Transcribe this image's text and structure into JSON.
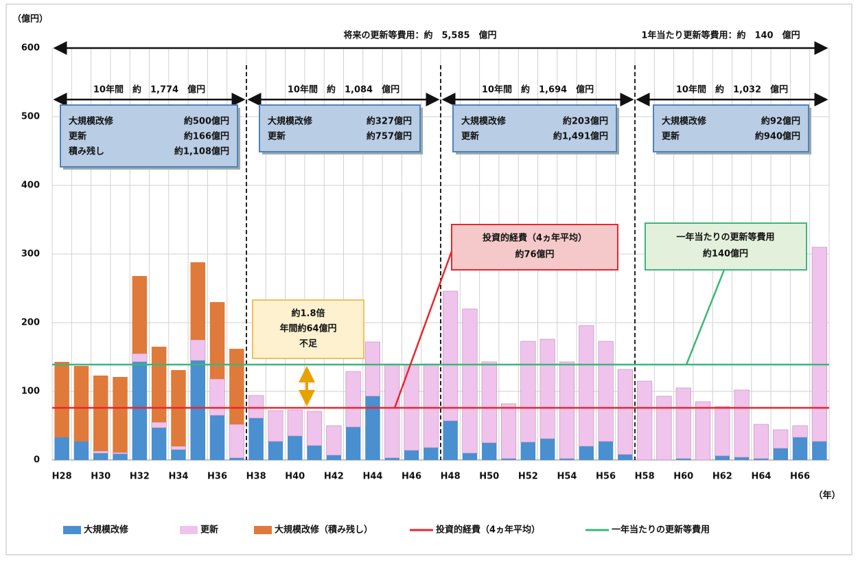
{
  "chart_data": {
    "type": "bar",
    "y_label": "（億円）",
    "x_label": "（年）",
    "categories": [
      "H28",
      null,
      "H30",
      null,
      "H32",
      null,
      "H34",
      null,
      "H36",
      null,
      "H38",
      null,
      "H40",
      null,
      "H42",
      null,
      "H44",
      null,
      "H46",
      null,
      "H48",
      null,
      "H50",
      null,
      "H52",
      null,
      "H54",
      null,
      "H56",
      null,
      "H58",
      null,
      "H60",
      null,
      "H62",
      null,
      "H64",
      null,
      "H66",
      null
    ],
    "series": [
      {
        "name": "大規模改修",
        "color": "#4a8fcf",
        "values": [
          33,
          27,
          10,
          9,
          143,
          47,
          15,
          145,
          65,
          3,
          61,
          27,
          35,
          21,
          7,
          48,
          93,
          3,
          14,
          18,
          57,
          10,
          25,
          2,
          26,
          31,
          2,
          20,
          27,
          8,
          0,
          0,
          2,
          0,
          6,
          4,
          2,
          17,
          33,
          27
        ]
      },
      {
        "name": "更新",
        "color": "#efc3ec",
        "values": [
          0,
          0,
          3,
          2,
          12,
          8,
          5,
          30,
          53,
          49,
          33,
          45,
          38,
          50,
          43,
          81,
          79,
          137,
          125,
          122,
          189,
          210,
          118,
          80,
          147,
          145,
          141,
          176,
          146,
          124,
          115,
          93,
          103,
          85,
          72,
          98,
          50,
          27,
          17,
          283
        ]
      },
      {
        "name": "大規模改修（積み残し）",
        "color": "#e07a3a",
        "values": [
          110,
          110,
          110,
          110,
          113,
          110,
          111,
          113,
          112,
          110,
          0,
          0,
          0,
          0,
          0,
          0,
          0,
          0,
          0,
          0,
          0,
          0,
          0,
          0,
          0,
          0,
          0,
          0,
          0,
          0,
          0,
          0,
          0,
          0,
          0,
          0,
          0,
          0,
          0,
          0
        ]
      }
    ],
    "lines": [
      {
        "name": "投資的経費（4ヵ年平均）",
        "color": "#e8262c",
        "value": 76
      },
      {
        "name": "一年当たりの更新等費用",
        "color": "#3db57a",
        "value": 139
      }
    ],
    "ylim": [
      0,
      600
    ],
    "yticks": [
      0,
      100,
      200,
      300,
      400,
      500,
      600
    ],
    "grid": true,
    "total_label": "将来の更新等費用：約　5,585　億円",
    "annual_label": "1年当たり更新等費用：約　140　億円",
    "decades": [
      {
        "label": "10年間　約　1,774　億円",
        "rows": [
          [
            "大規模改修",
            "約500億円"
          ],
          [
            "更新",
            "約166億円"
          ],
          [
            "積み残し",
            "約1,108億円"
          ]
        ]
      },
      {
        "label": "10年間　約　1,084　億円",
        "rows": [
          [
            "大規模改修",
            "約327億円"
          ],
          [
            "更新",
            "約757億円"
          ]
        ]
      },
      {
        "label": "10年間　約　1,694　億円",
        "rows": [
          [
            "大規模改修",
            "約203億円"
          ],
          [
            "更新",
            "約1,491億円"
          ]
        ]
      },
      {
        "label": "10年間　約　1,032　億円",
        "rows": [
          [
            "大規模改修",
            "約92億円"
          ],
          [
            "更新",
            "約940億円"
          ]
        ]
      }
    ],
    "gap_note": [
      "約1.8倍",
      "年間約64億円",
      "不足"
    ],
    "invest_note": [
      "投資的経費（4ヵ年平均）",
      "約76億円"
    ],
    "annual_note": [
      "一年当たりの更新等費用",
      "約140億円"
    ]
  }
}
